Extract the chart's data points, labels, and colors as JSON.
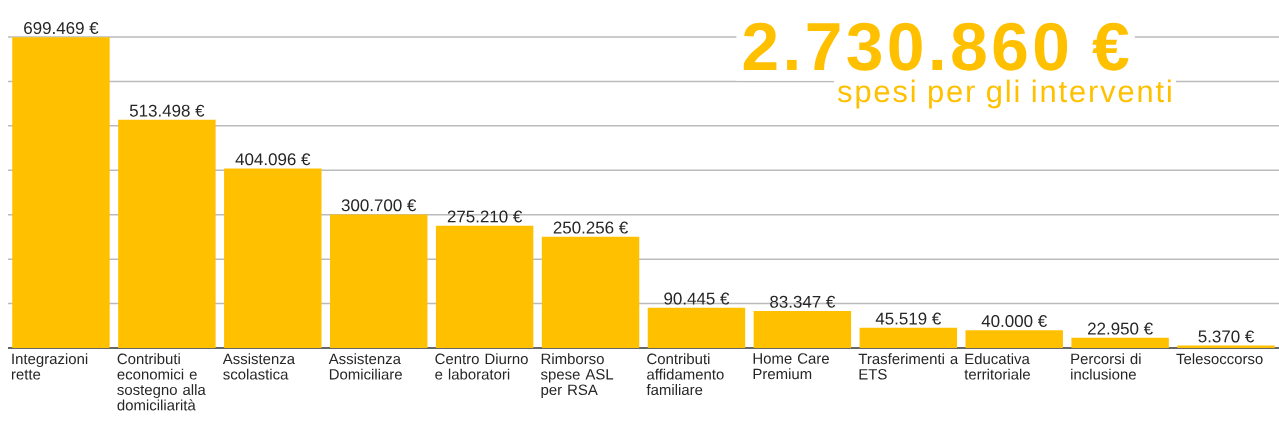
{
  "chart_data": {
    "type": "bar",
    "title": "2.730.860 €",
    "subtitle": "spesi per gli interventi",
    "categories": [
      "Integrazioni rette",
      "Contributi economici e sostegno alla domiciliarità",
      "Assistenza scolastica",
      "Assistenza Domiciliare",
      "Centro Diurno e laboratori",
      "Rimborso spese ASL per RSA",
      "Contributi affidamento familiare",
      "Home Care Premium",
      "Trasferimenti a ETS",
      "Educativa territoriale",
      "Percorsi di inclusione",
      "Telesoccorso"
    ],
    "values": [
      699469,
      513498,
      404096,
      300700,
      275210,
      250256,
      90445,
      83347,
      45519,
      40000,
      22950,
      5370
    ],
    "value_labels": [
      "699.469 €",
      "513.498 €",
      "404.096 €",
      "300.700 €",
      "275.210 €",
      "250.256 €",
      "90.445 €",
      "83.347 €",
      "45.519 €",
      "40.000 €",
      "22.950 €",
      "5.370 €"
    ],
    "color": "#FFC000",
    "ylim": [
      0,
      700000
    ],
    "yticks": [
      {
        "value": 0,
        "label": null
      },
      {
        "value": 100000,
        "label": null
      },
      {
        "value": 200000,
        "label": null
      },
      {
        "value": 300000,
        "label": null
      },
      {
        "value": 400000,
        "label": null
      },
      {
        "value": 500000,
        "label": null
      },
      {
        "value": 600000,
        "label": null
      },
      {
        "value": 700000,
        "label": null
      }
    ],
    "grid": "y",
    "tick_labels": "x"
  }
}
